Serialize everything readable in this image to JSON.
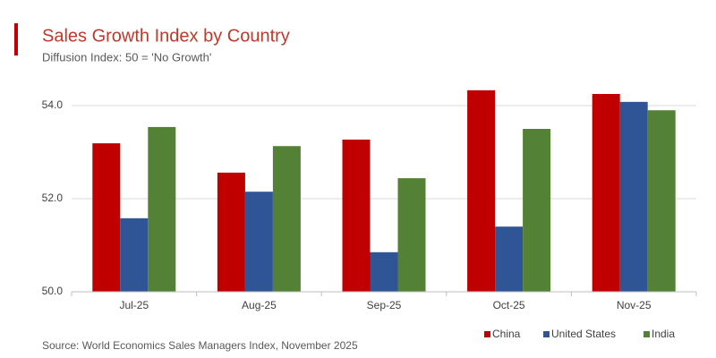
{
  "chart_data": {
    "type": "bar",
    "title": "Sales Growth Index by Country",
    "subtitle": "Diffusion Index: 50 = 'No Growth'",
    "source": "Source: World Economics Sales Managers Index, November 2025",
    "categories": [
      "Jul-25",
      "Aug-25",
      "Sep-25",
      "Oct-25",
      "Nov-25"
    ],
    "series": [
      {
        "name": "China",
        "color": "#c00000",
        "values": [
          53.19,
          52.56,
          53.27,
          54.33,
          54.25
        ]
      },
      {
        "name": "United States",
        "color": "#2f5597",
        "values": [
          51.58,
          52.15,
          50.85,
          51.4,
          54.08
        ]
      },
      {
        "name": "India",
        "color": "#538135",
        "values": [
          53.54,
          53.13,
          52.44,
          53.5,
          53.9
        ]
      }
    ],
    "ylim": [
      50,
      54.5
    ],
    "yticks": [
      {
        "value": 50,
        "label": "50.0"
      },
      {
        "value": 52,
        "label": "52.0"
      },
      {
        "value": 54,
        "label": "54.0"
      }
    ],
    "grid": true,
    "legend": "bottom-right"
  }
}
